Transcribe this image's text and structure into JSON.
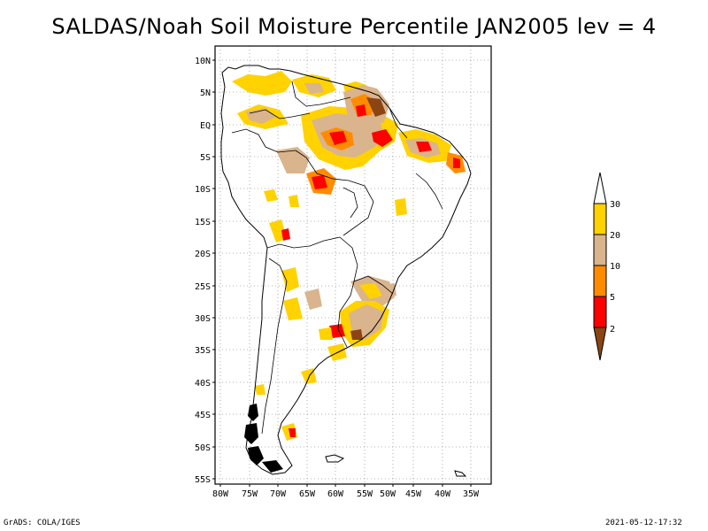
{
  "title": "SALDAS/Noah Soil Moisture Percentile JAN2005 lev = 4",
  "map": {
    "lat_ticks": [
      "10N",
      "5N",
      "EQ",
      "5S",
      "10S",
      "15S",
      "20S",
      "25S",
      "30S",
      "35S",
      "40S",
      "45S",
      "50S",
      "55S"
    ],
    "lon_ticks": [
      "80W",
      "75W",
      "70W",
      "65W",
      "60W",
      "55W",
      "50W",
      "45W",
      "40W",
      "35W"
    ],
    "extent": {
      "lon_min": -81,
      "lon_max": -33,
      "lat_min": -56,
      "lat_max": 12
    },
    "gridlines": "dotted"
  },
  "legend": {
    "labels": [
      "30",
      "20",
      "10",
      "5",
      "2"
    ],
    "colors": {
      "above_30": "#ffffff",
      "20_30": "#ffd200",
      "10_20": "#d9b48c",
      "5_10": "#ff8c00",
      "2_5": "#ff0000",
      "below_2": "#8b4513"
    }
  },
  "footer": {
    "left": "GrADS: COLA/IGES",
    "right": "2021-05-12-17:32"
  }
}
